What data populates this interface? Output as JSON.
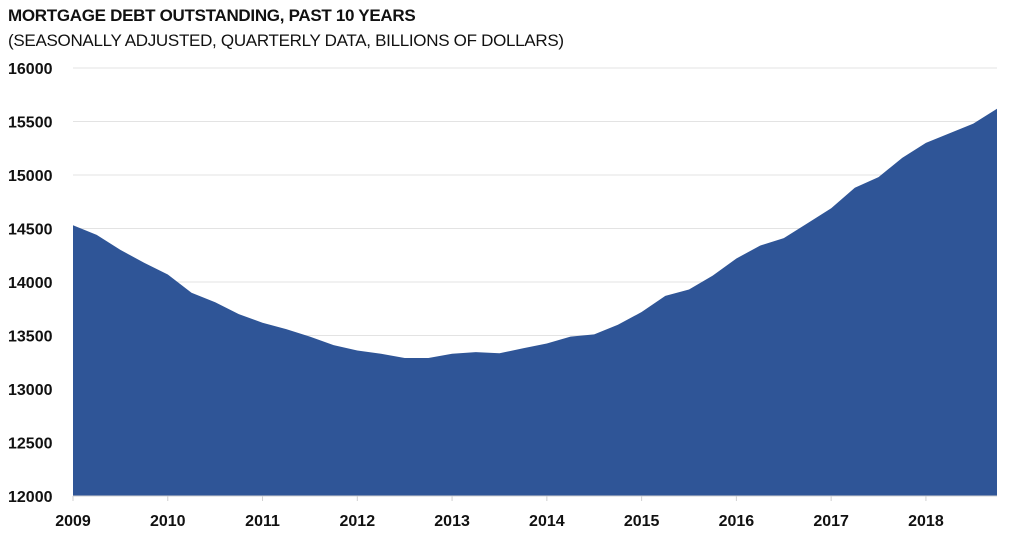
{
  "chart_data": {
    "type": "area",
    "title": "MORTGAGE DEBT OUTSTANDING, PAST 10 YEARS",
    "subtitle": "(SEASONALLY ADJUSTED, QUARTERLY DATA, BILLIONS OF DOLLARS)",
    "xlabel": "",
    "ylabel": "",
    "ylim": [
      12000,
      16000
    ],
    "yticks": [
      "12000",
      "12500",
      "13000",
      "13500",
      "14000",
      "14500",
      "15000",
      "15500",
      "16000"
    ],
    "xticks": [
      "2009",
      "2010",
      "2011",
      "2012",
      "2013",
      "2014",
      "2015",
      "2016",
      "2017",
      "2018"
    ],
    "grid": true,
    "fill_color": "#2F5597",
    "x_start": 2009,
    "quarters_per_year": 4,
    "series": [
      {
        "name": "Mortgage debt outstanding",
        "values": [
          14530,
          14440,
          14300,
          14180,
          14070,
          13900,
          13810,
          13700,
          13620,
          13560,
          13490,
          13410,
          13360,
          13330,
          13290,
          13290,
          13330,
          13345,
          13335,
          13380,
          13425,
          13490,
          13510,
          13600,
          13720,
          13870,
          13930,
          14060,
          14220,
          14340,
          14410,
          14550,
          14690,
          14880,
          14980,
          15160,
          15300,
          15390,
          15480,
          15620
        ]
      }
    ]
  }
}
